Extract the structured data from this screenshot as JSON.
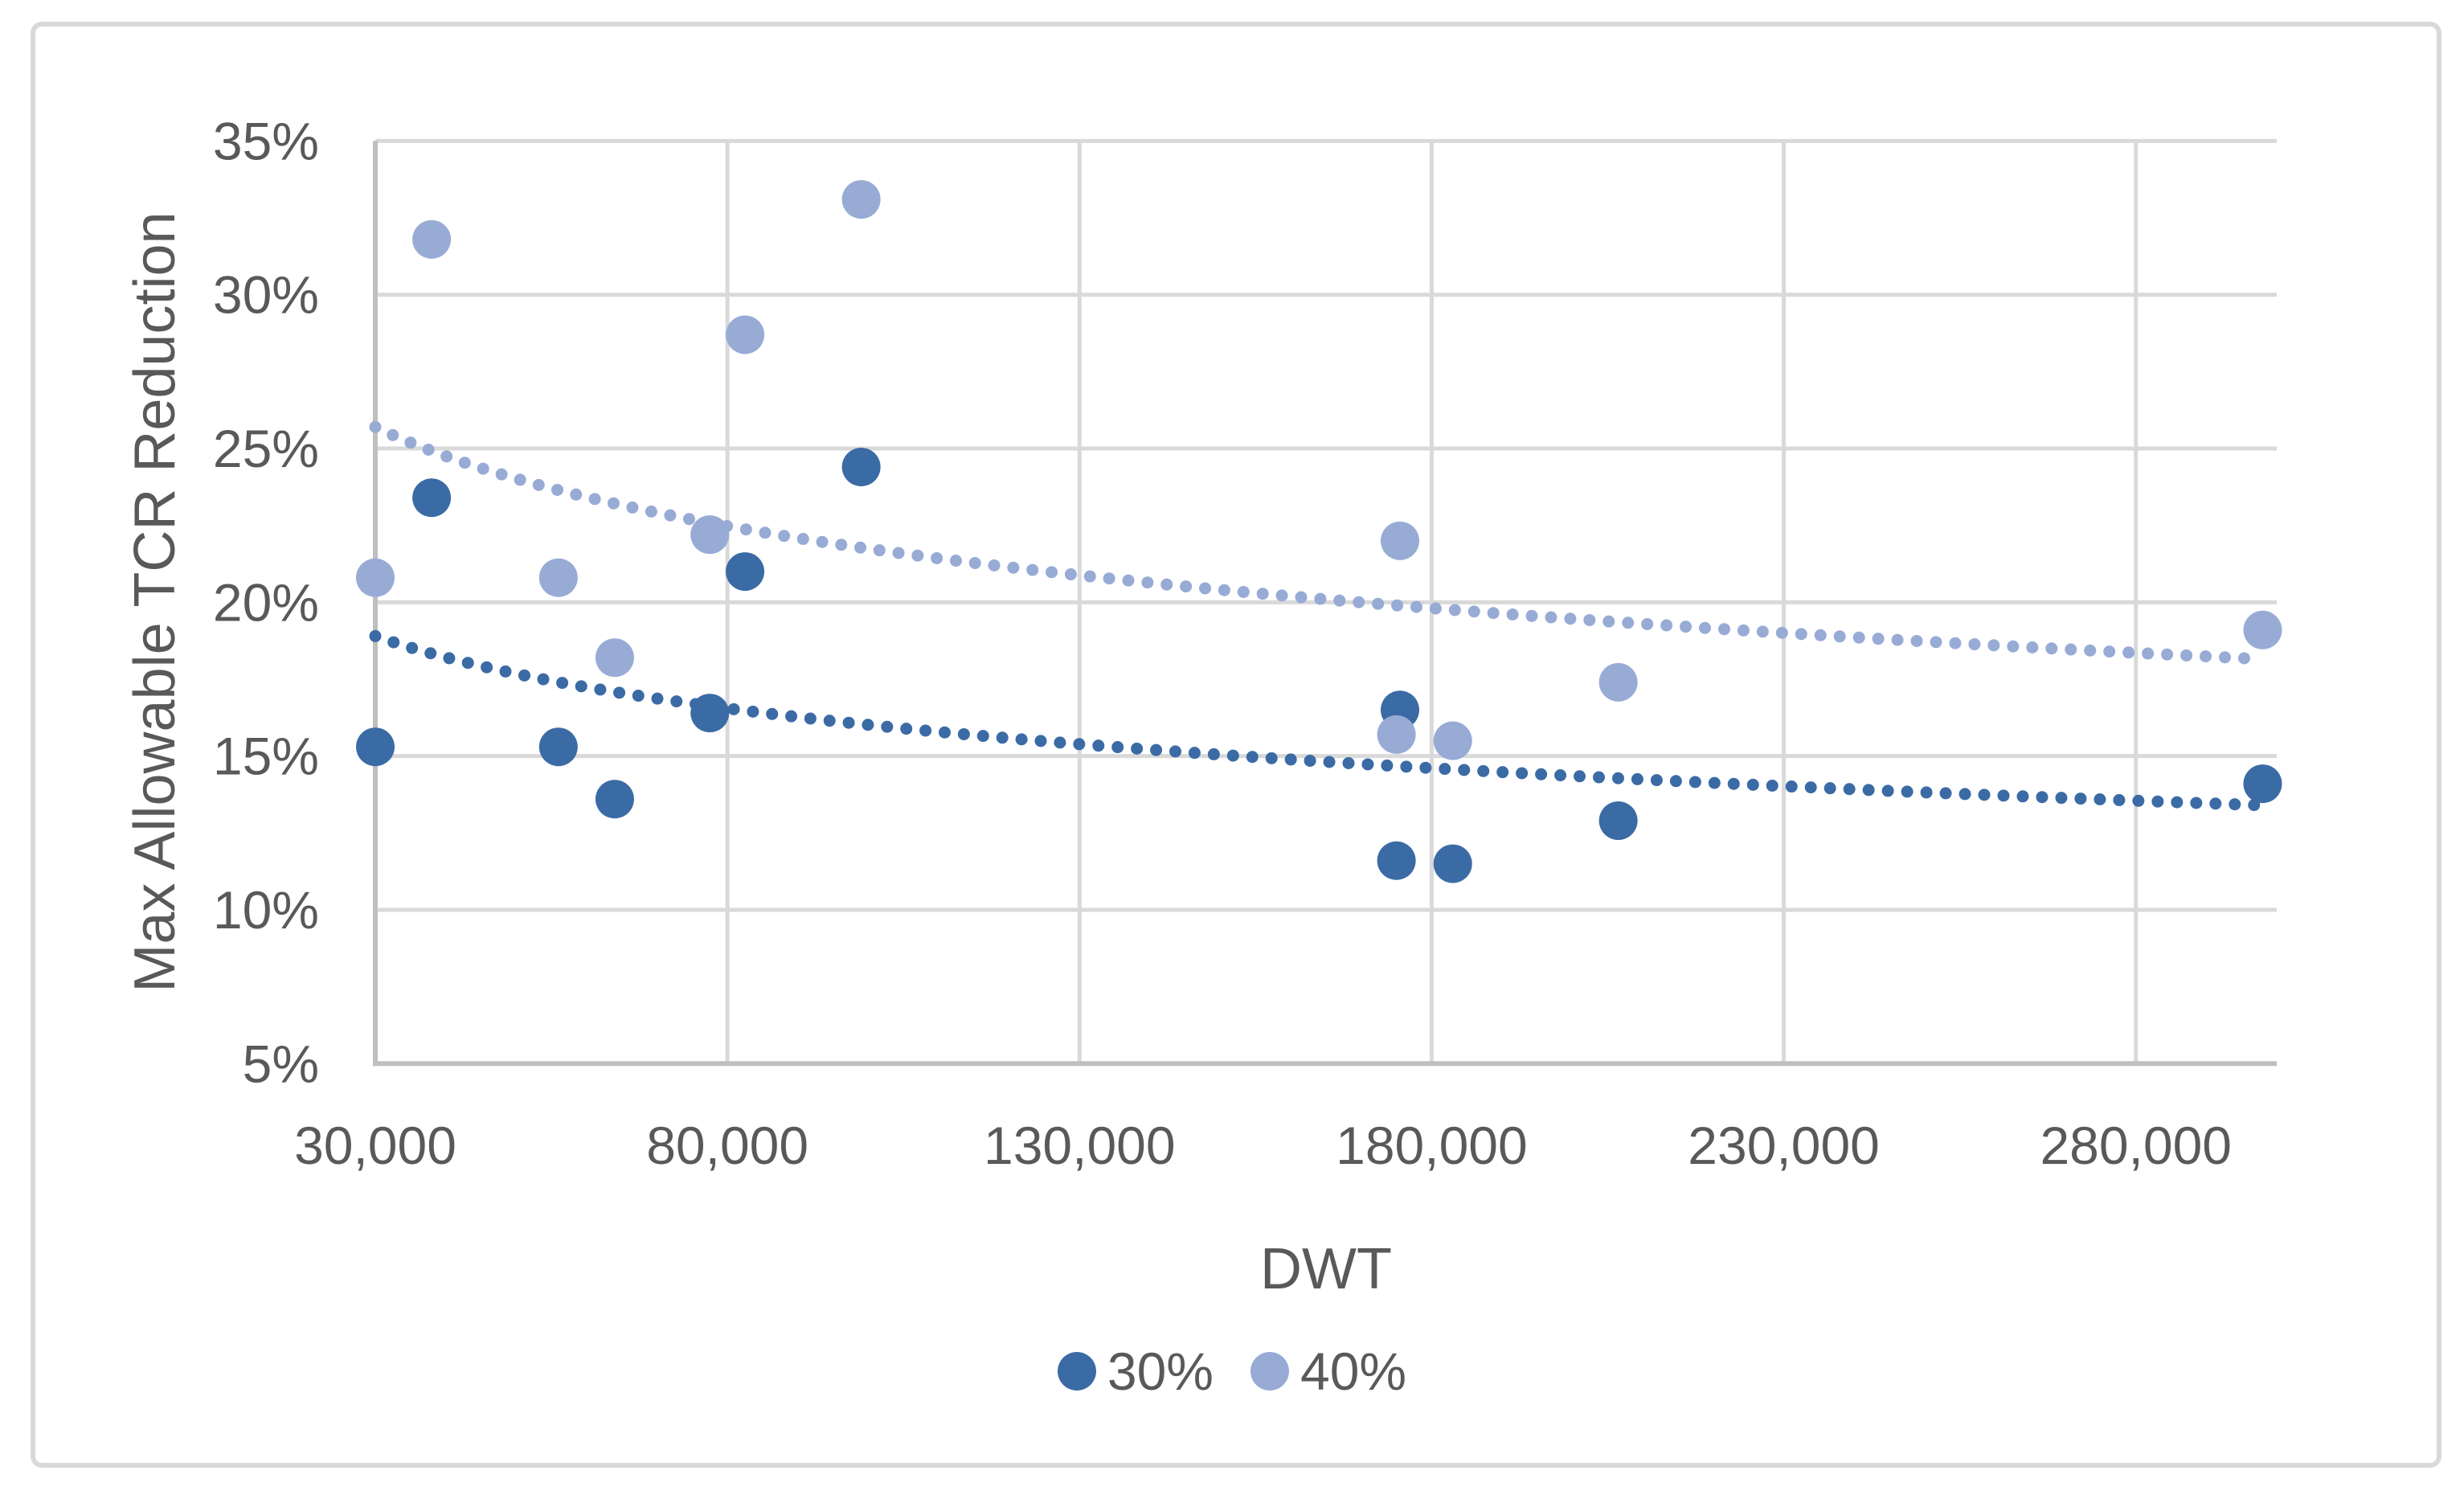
{
  "chart_data": {
    "type": "scatter",
    "title": "",
    "xlabel": "DWT",
    "ylabel": "Max Allowable TCR Reduction",
    "x_axis": {
      "min": 30000,
      "max": 300000,
      "gridline_step": 50000,
      "tick_values": [
        30000,
        80000,
        130000,
        180000,
        230000,
        280000
      ],
      "tick_labels": [
        "30,000",
        "80,000",
        "130,000",
        "180,000",
        "230,000",
        "280,000"
      ],
      "grid": true
    },
    "y_axis": {
      "min": 5,
      "max": 35,
      "unit": "%",
      "tick_values": [
        35,
        30,
        25,
        20,
        15,
        10,
        5
      ],
      "tick_labels": [
        "35%",
        "30%",
        "25%",
        "20%",
        "15%",
        "10%",
        "5%"
      ],
      "grid": true
    },
    "series": [
      {
        "name": "30%",
        "color": "#3B6BA5",
        "marker": "circle",
        "points": [
          [
            30000,
            15.3
          ],
          [
            38000,
            23.4
          ],
          [
            56000,
            15.3
          ],
          [
            64000,
            13.6
          ],
          [
            77500,
            16.4
          ],
          [
            82500,
            21.0
          ],
          [
            99000,
            24.4
          ],
          [
            175000,
            11.6
          ],
          [
            175500,
            16.5
          ],
          [
            183000,
            11.5
          ],
          [
            206500,
            12.9
          ],
          [
            298000,
            14.1
          ]
        ],
        "trendline": {
          "model": "log",
          "style": "dotted",
          "x_start": 30000,
          "y_start": 18.9,
          "x_end": 298000,
          "y_end": 13.4
        }
      },
      {
        "name": "40%",
        "color": "#97ABD5",
        "marker": "circle",
        "points": [
          [
            30000,
            20.8
          ],
          [
            38000,
            31.8
          ],
          [
            56000,
            20.8
          ],
          [
            64000,
            18.2
          ],
          [
            77500,
            22.2
          ],
          [
            82500,
            28.7
          ],
          [
            99000,
            33.1
          ],
          [
            175000,
            15.7
          ],
          [
            175500,
            22.0
          ],
          [
            183000,
            15.5
          ],
          [
            206500,
            17.4
          ],
          [
            298000,
            19.1
          ]
        ],
        "trendline": {
          "model": "log",
          "style": "dotted",
          "x_start": 30000,
          "y_start": 25.7,
          "x_end": 298000,
          "y_end": 18.15
        }
      }
    ],
    "legend": {
      "position": "bottom",
      "entries": [
        "30%",
        "40%"
      ]
    },
    "style": {
      "grid_color": "#D9D9D9",
      "axis_color": "#BFBFBF",
      "text_color": "#595959",
      "border_color": "#D9D9D9",
      "background": "#FFFFFF"
    }
  }
}
